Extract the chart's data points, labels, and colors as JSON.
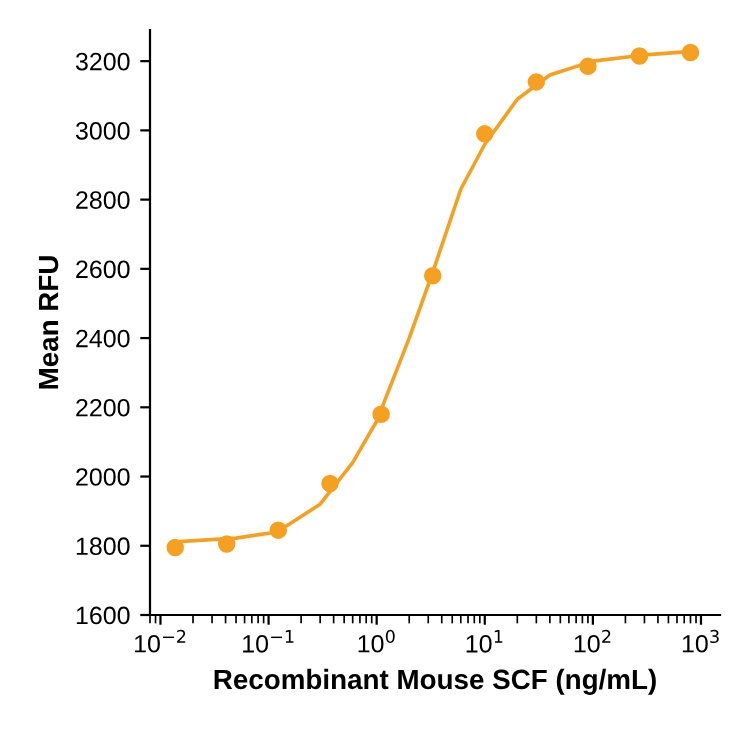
{
  "chart_data": {
    "type": "scatter",
    "xlabel": "Recombinant Mouse SCF (ng/mL)",
    "ylabel": "Mean RFU",
    "log": "x",
    "grid": false,
    "xlim": [
      0.008,
      1500
    ],
    "xticks": [
      {
        "value": 0.01,
        "label": "10$^{−2}$"
      },
      {
        "value": 0.1,
        "label": "10$^{−1}$"
      },
      {
        "value": 1,
        "label": "10$^{0}$"
      },
      {
        "value": 10,
        "label": "10$^{1}$"
      },
      {
        "value": 100,
        "label": "10$^{2}$"
      },
      {
        "value": 1000,
        "label": "10$^{3}$"
      }
    ],
    "ylim": [
      1600,
      3290
    ],
    "yticks": [
      1600,
      1800,
      2000,
      2200,
      2400,
      2600,
      2800,
      3000,
      3200
    ],
    "series": [
      {
        "marker": "circle",
        "color": "#f5a020",
        "x": [
          0.0137,
          0.041,
          0.123,
          0.37,
          1.1,
          3.3,
          10,
          30,
          90,
          270,
          800
        ],
        "values": [
          1795,
          1805,
          1845,
          1980,
          2180,
          2580,
          2990,
          3140,
          3185,
          3215,
          3225
        ]
      },
      {
        "type": "line",
        "marker": "none",
        "line_style": "solid",
        "color": "#f5a020",
        "x": [
          0.015,
          0.05,
          0.12,
          0.3,
          0.6,
          1,
          2,
          3.3,
          6,
          10,
          20,
          40,
          100,
          300,
          800
        ],
        "values": [
          1812,
          1822,
          1840,
          1920,
          2040,
          2160,
          2400,
          2590,
          2830,
          2960,
          3090,
          3160,
          3200,
          3218,
          3228
        ]
      }
    ]
  }
}
